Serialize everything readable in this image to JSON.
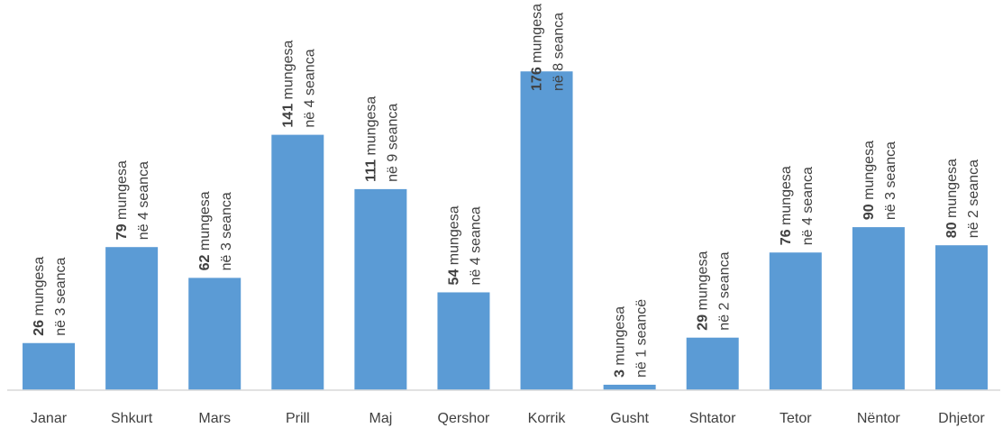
{
  "chart_data": {
    "type": "bar",
    "categories": [
      "Janar",
      "Shkurt",
      "Mars",
      "Prill",
      "Maj",
      "Qershor",
      "Korrik",
      "Gusht",
      "Shtator",
      "Tetor",
      "Nëntor",
      "Dhjetor"
    ],
    "values": [
      26,
      79,
      62,
      141,
      111,
      54,
      176,
      3,
      29,
      76,
      90,
      80
    ],
    "value_labels": [
      "26 mungesa",
      "79 mungesa",
      "62 mungesa",
      "141 mungesa",
      "111 mungesa",
      "54 mungesa",
      "176 mungesa",
      "3 mungesa",
      "29 mungesa",
      "76 mungesa",
      "90 mungesa",
      "80 mungesa"
    ],
    "sessions_labels": [
      "në 3 seanca",
      "në 4 seanca",
      "në 3 seanca",
      "në 4 seanca",
      "në 9 seanca",
      "në 4 seanca",
      "në 8 seanca",
      "në 1 seancë",
      "në 2 seanca",
      "në 4 seanca",
      "në 3 seanca",
      "në 2 seanca"
    ],
    "color": "#5b9bd5",
    "ylim": [
      0,
      200
    ]
  }
}
